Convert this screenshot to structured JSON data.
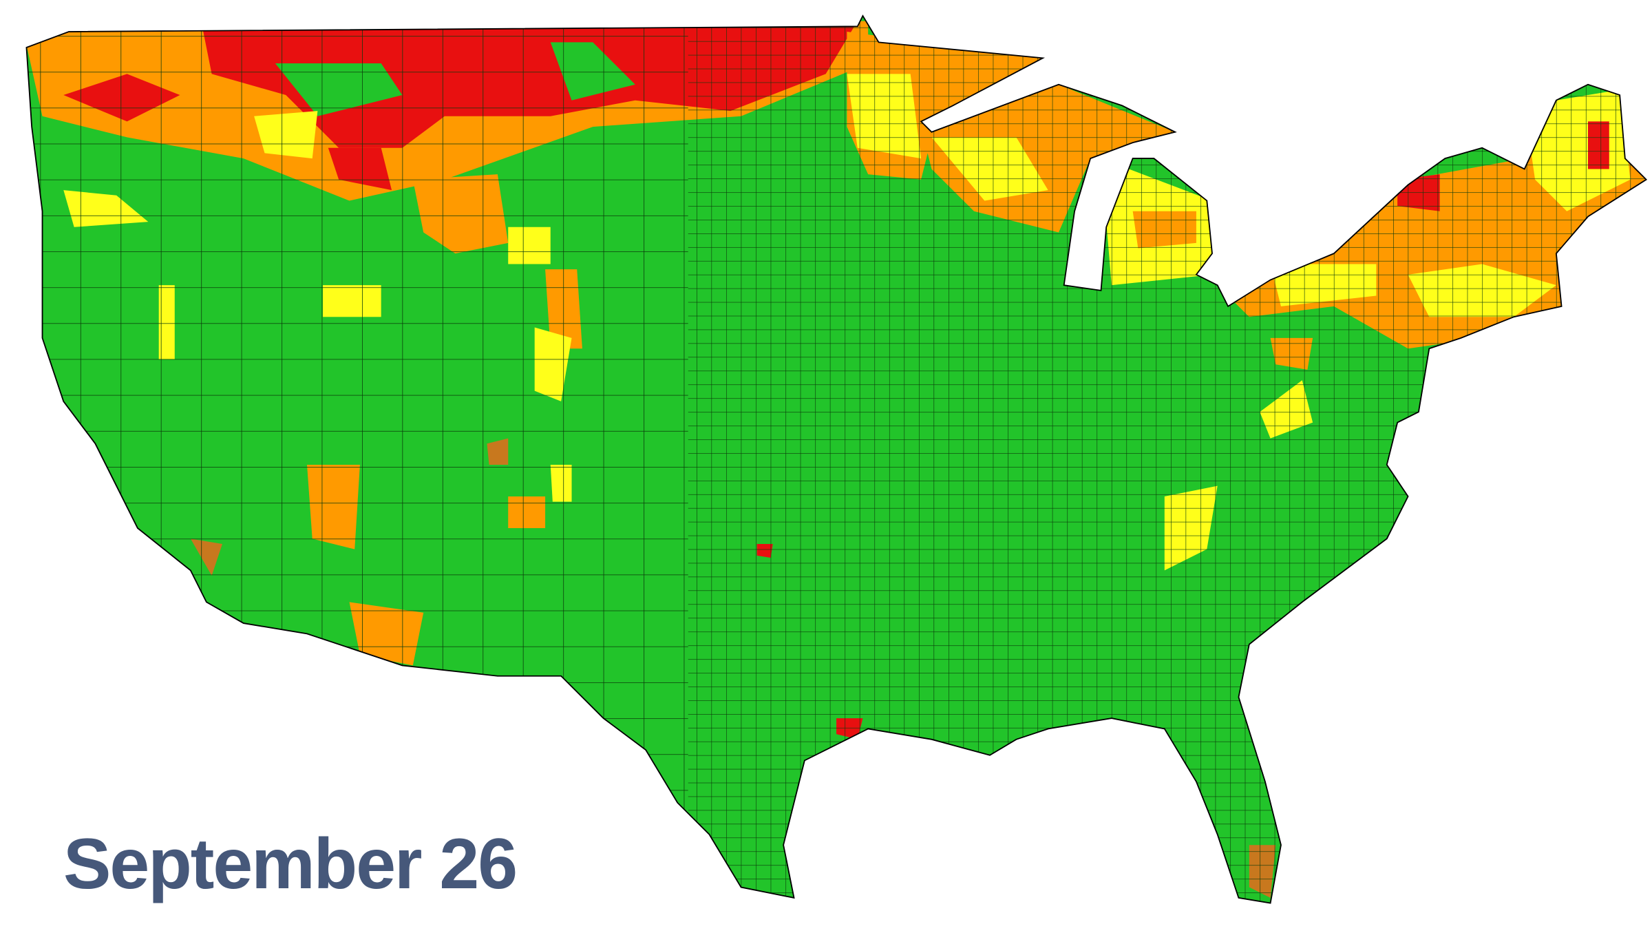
{
  "label": "September 26"
}
